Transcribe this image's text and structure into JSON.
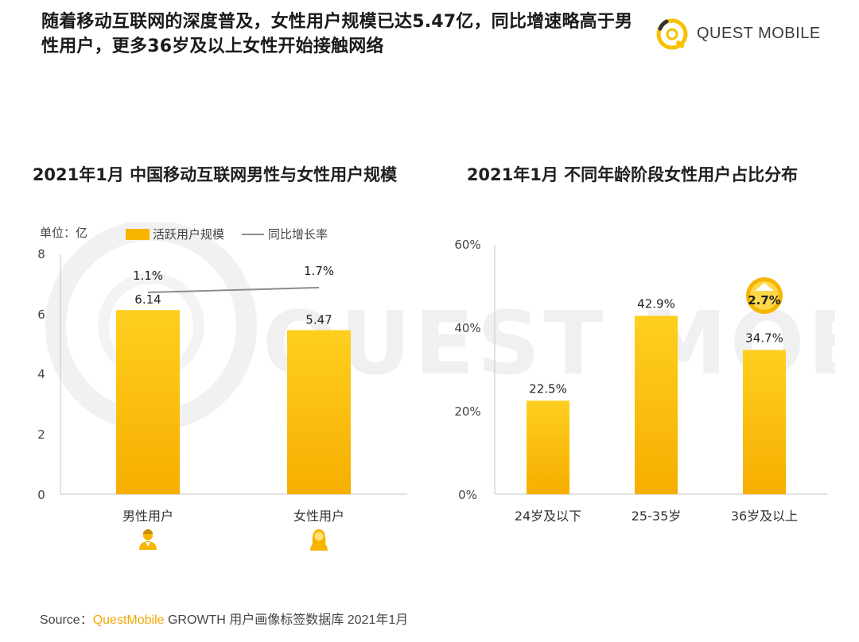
{
  "headline": "随着移动互联网的深度普及，女性用户规模已达5.47亿，同比增速略高于男性用户，更多36岁及以上女性开始接触网络",
  "logo_text": "QUEST MOBILE",
  "watermark_text": "QUEST MOBILE",
  "colors": {
    "bar": "#f7b500",
    "bar_light": "#ffd445",
    "line": "#8c8c8c",
    "brand_text": "#f0a800"
  },
  "icons": [
    "male-user-icon",
    "female-user-icon",
    "arrow-up-badge-icon"
  ],
  "chart_data": [
    {
      "type": "bar",
      "title": "2021年1月 中国移动互联网男性与女性用户规模",
      "unit_label": "单位：亿",
      "legend": [
        "活跃用户规模",
        "同比增长率"
      ],
      "categories": [
        "男性用户",
        "女性用户"
      ],
      "series": [
        {
          "name": "活跃用户规模",
          "type": "bar",
          "values": [
            6.14,
            5.47
          ],
          "labels": [
            "6.14",
            "5.47"
          ]
        },
        {
          "name": "同比增长率",
          "type": "line",
          "values": [
            1.1,
            1.7
          ],
          "labels": [
            "1.1%",
            "1.7%"
          ]
        }
      ],
      "ylim": [
        0,
        8
      ],
      "yticks": [
        "0",
        "2",
        "4",
        "6",
        "8"
      ],
      "grid": false
    },
    {
      "type": "bar",
      "title": "2021年1月 不同年龄阶段女性用户占比分布",
      "categories": [
        "24岁及以下",
        "25-35岁",
        "36岁及以上"
      ],
      "values": [
        22.5,
        42.9,
        34.7
      ],
      "labels": [
        "22.5%",
        "42.9%",
        "34.7%"
      ],
      "ylim": [
        0,
        60
      ],
      "yticks": [
        "0%",
        "20%",
        "40%",
        "60%"
      ],
      "annotation": "2.7%",
      "grid": false
    }
  ],
  "source": {
    "prefix": "Source：",
    "brand": "QuestMobile",
    "rest": " GROWTH 用户画像标签数据库 2021年1月"
  }
}
